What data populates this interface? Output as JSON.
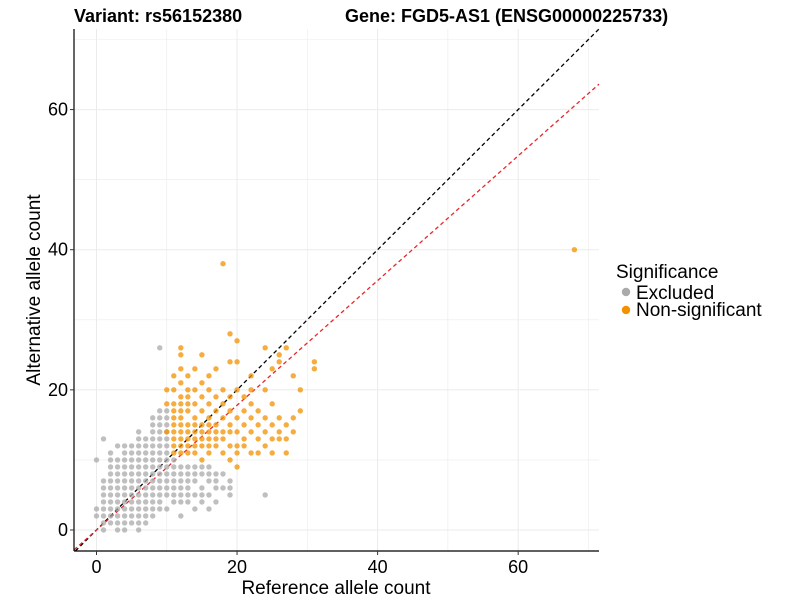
{
  "chart_data": {
    "type": "scatter",
    "title_left": "Variant: rs56152380",
    "title_right": "Gene: FGD5-AS1 (ENSG00000225733)",
    "xlabel": "Reference allele count",
    "ylabel": "Alternative allele count",
    "xlim": [
      -3.2,
      71.5
    ],
    "ylim": [
      -3.0,
      71.5
    ],
    "x_ticks": [
      0,
      20,
      40,
      60
    ],
    "y_ticks": [
      0,
      20,
      40,
      60
    ],
    "x_tick_labels": [
      "0",
      "20",
      "40",
      "60"
    ],
    "y_tick_labels": [
      "0",
      "20",
      "40",
      "60"
    ],
    "grid": true,
    "legend": {
      "title": "Significance",
      "position": "right",
      "entries": [
        {
          "label": "Excluded",
          "color": "#aaaaaa"
        },
        {
          "label": "Non-significant",
          "color": "#f39200"
        }
      ]
    },
    "reference_lines": [
      {
        "name": "identity",
        "slope": 1.0,
        "intercept": 0,
        "color": "#000000",
        "style": "dashed"
      },
      {
        "name": "fit",
        "slope": 0.89,
        "intercept": 0,
        "color": "#e8272a",
        "style": "dashed"
      }
    ],
    "series": [
      {
        "name": "Excluded",
        "color": "#aaaaaa",
        "points": [
          [
            0,
            2
          ],
          [
            0,
            3
          ],
          [
            0,
            10
          ],
          [
            1,
            0
          ],
          [
            1,
            1
          ],
          [
            1,
            2
          ],
          [
            1,
            3
          ],
          [
            1,
            4
          ],
          [
            1,
            5
          ],
          [
            1,
            6
          ],
          [
            1,
            7
          ],
          [
            1,
            13
          ],
          [
            2,
            1
          ],
          [
            2,
            2
          ],
          [
            2,
            3
          ],
          [
            2,
            4
          ],
          [
            2,
            5
          ],
          [
            2,
            6
          ],
          [
            2,
            7
          ],
          [
            2,
            8
          ],
          [
            2,
            9
          ],
          [
            2,
            10
          ],
          [
            2,
            11
          ],
          [
            3,
            0
          ],
          [
            3,
            1
          ],
          [
            3,
            2
          ],
          [
            3,
            3
          ],
          [
            3,
            4
          ],
          [
            3,
            5
          ],
          [
            3,
            6
          ],
          [
            3,
            7
          ],
          [
            3,
            8
          ],
          [
            3,
            9
          ],
          [
            3,
            10
          ],
          [
            3,
            12
          ],
          [
            4,
            0
          ],
          [
            4,
            1
          ],
          [
            4,
            2
          ],
          [
            4,
            3
          ],
          [
            4,
            4
          ],
          [
            4,
            5
          ],
          [
            4,
            6
          ],
          [
            4,
            7
          ],
          [
            4,
            8
          ],
          [
            4,
            9
          ],
          [
            4,
            10
          ],
          [
            4,
            11
          ],
          [
            4,
            12
          ],
          [
            5,
            1
          ],
          [
            5,
            2
          ],
          [
            5,
            3
          ],
          [
            5,
            4
          ],
          [
            5,
            5
          ],
          [
            5,
            6
          ],
          [
            5,
            7
          ],
          [
            5,
            8
          ],
          [
            5,
            9
          ],
          [
            5,
            10
          ],
          [
            5,
            11
          ],
          [
            5,
            12
          ],
          [
            6,
            0
          ],
          [
            6,
            1
          ],
          [
            6,
            2
          ],
          [
            6,
            3
          ],
          [
            6,
            4
          ],
          [
            6,
            5
          ],
          [
            6,
            6
          ],
          [
            6,
            7
          ],
          [
            6,
            8
          ],
          [
            6,
            9
          ],
          [
            6,
            10
          ],
          [
            6,
            11
          ],
          [
            6,
            12
          ],
          [
            6,
            13
          ],
          [
            6,
            14
          ],
          [
            7,
            1
          ],
          [
            7,
            2
          ],
          [
            7,
            3
          ],
          [
            7,
            4
          ],
          [
            7,
            5
          ],
          [
            7,
            6
          ],
          [
            7,
            7
          ],
          [
            7,
            8
          ],
          [
            7,
            9
          ],
          [
            7,
            10
          ],
          [
            7,
            11
          ],
          [
            7,
            12
          ],
          [
            7,
            13
          ],
          [
            8,
            2
          ],
          [
            8,
            3
          ],
          [
            8,
            4
          ],
          [
            8,
            5
          ],
          [
            8,
            6
          ],
          [
            8,
            7
          ],
          [
            8,
            8
          ],
          [
            8,
            9
          ],
          [
            8,
            10
          ],
          [
            8,
            11
          ],
          [
            8,
            12
          ],
          [
            8,
            13
          ],
          [
            8,
            14
          ],
          [
            8,
            15
          ],
          [
            8,
            16
          ],
          [
            9,
            3
          ],
          [
            9,
            4
          ],
          [
            9,
            5
          ],
          [
            9,
            6
          ],
          [
            9,
            7
          ],
          [
            9,
            8
          ],
          [
            9,
            9
          ],
          [
            9,
            10
          ],
          [
            9,
            11
          ],
          [
            9,
            12
          ],
          [
            9,
            13
          ],
          [
            9,
            14
          ],
          [
            9,
            15
          ],
          [
            9,
            16
          ],
          [
            9,
            17
          ],
          [
            9,
            26
          ],
          [
            10,
            3
          ],
          [
            10,
            5
          ],
          [
            10,
            6
          ],
          [
            10,
            7
          ],
          [
            10,
            8
          ],
          [
            10,
            9
          ],
          [
            10,
            10
          ],
          [
            10,
            11
          ],
          [
            10,
            12
          ],
          [
            10,
            13
          ],
          [
            10,
            14
          ],
          [
            10,
            15
          ],
          [
            10,
            16
          ],
          [
            10,
            17
          ],
          [
            11,
            4
          ],
          [
            11,
            5
          ],
          [
            11,
            6
          ],
          [
            11,
            7
          ],
          [
            11,
            8
          ],
          [
            11,
            9
          ],
          [
            11,
            10
          ],
          [
            12,
            2
          ],
          [
            12,
            4
          ],
          [
            12,
            5
          ],
          [
            12,
            6
          ],
          [
            12,
            7
          ],
          [
            12,
            8
          ],
          [
            12,
            9
          ],
          [
            13,
            4
          ],
          [
            13,
            5
          ],
          [
            13,
            6
          ],
          [
            13,
            7
          ],
          [
            13,
            8
          ],
          [
            13,
            9
          ],
          [
            14,
            3
          ],
          [
            14,
            5
          ],
          [
            14,
            7
          ],
          [
            14,
            8
          ],
          [
            14,
            9
          ],
          [
            15,
            4
          ],
          [
            15,
            5
          ],
          [
            15,
            6
          ],
          [
            15,
            8
          ],
          [
            15,
            9
          ],
          [
            16,
            3
          ],
          [
            16,
            5
          ],
          [
            16,
            7
          ],
          [
            16,
            8
          ],
          [
            16,
            9
          ],
          [
            17,
            4
          ],
          [
            17,
            6
          ],
          [
            17,
            7
          ],
          [
            17,
            8
          ],
          [
            18,
            6
          ],
          [
            18,
            8
          ],
          [
            19,
            5
          ],
          [
            19,
            6
          ],
          [
            19,
            7
          ],
          [
            24,
            5
          ]
        ]
      },
      {
        "name": "Non-significant",
        "color": "#f39200",
        "points": [
          [
            10,
            14
          ],
          [
            10,
            18
          ],
          [
            10,
            20
          ],
          [
            11,
            11
          ],
          [
            11,
            12
          ],
          [
            11,
            13
          ],
          [
            11,
            14
          ],
          [
            11,
            15
          ],
          [
            11,
            16
          ],
          [
            11,
            17
          ],
          [
            11,
            18
          ],
          [
            11,
            20
          ],
          [
            11,
            22
          ],
          [
            12,
            11
          ],
          [
            12,
            12
          ],
          [
            12,
            13
          ],
          [
            12,
            14
          ],
          [
            12,
            15
          ],
          [
            12,
            16
          ],
          [
            12,
            17
          ],
          [
            12,
            18
          ],
          [
            12,
            19
          ],
          [
            12,
            21
          ],
          [
            12,
            23
          ],
          [
            12,
            25
          ],
          [
            12,
            26
          ],
          [
            13,
            11
          ],
          [
            13,
            12
          ],
          [
            13,
            13
          ],
          [
            13,
            14
          ],
          [
            13,
            15
          ],
          [
            13,
            17
          ],
          [
            13,
            18
          ],
          [
            13,
            19
          ],
          [
            13,
            20
          ],
          [
            13,
            22
          ],
          [
            14,
            11
          ],
          [
            14,
            12
          ],
          [
            14,
            13
          ],
          [
            14,
            14
          ],
          [
            14,
            15
          ],
          [
            14,
            16
          ],
          [
            14,
            18
          ],
          [
            14,
            20
          ],
          [
            14,
            23
          ],
          [
            15,
            10
          ],
          [
            15,
            12
          ],
          [
            15,
            13
          ],
          [
            15,
            14
          ],
          [
            15,
            15
          ],
          [
            15,
            17
          ],
          [
            15,
            19
          ],
          [
            15,
            21
          ],
          [
            15,
            25
          ],
          [
            16,
            11
          ],
          [
            16,
            12
          ],
          [
            16,
            13
          ],
          [
            16,
            14
          ],
          [
            16,
            15
          ],
          [
            16,
            16
          ],
          [
            16,
            18
          ],
          [
            16,
            20
          ],
          [
            16,
            22
          ],
          [
            17,
            12
          ],
          [
            17,
            13
          ],
          [
            17,
            14
          ],
          [
            17,
            15
          ],
          [
            17,
            17
          ],
          [
            17,
            19
          ],
          [
            17,
            23
          ],
          [
            18,
            11
          ],
          [
            18,
            13
          ],
          [
            18,
            14
          ],
          [
            18,
            16
          ],
          [
            18,
            18
          ],
          [
            18,
            20
          ],
          [
            18,
            38
          ],
          [
            19,
            10
          ],
          [
            19,
            12
          ],
          [
            19,
            14
          ],
          [
            19,
            15
          ],
          [
            19,
            17
          ],
          [
            19,
            19
          ],
          [
            19,
            24
          ],
          [
            19,
            28
          ],
          [
            20,
            9
          ],
          [
            20,
            11
          ],
          [
            20,
            12
          ],
          [
            20,
            14
          ],
          [
            20,
            16
          ],
          [
            20,
            20
          ],
          [
            20,
            24
          ],
          [
            20,
            27
          ],
          [
            21,
            12
          ],
          [
            21,
            13
          ],
          [
            21,
            15
          ],
          [
            21,
            17
          ],
          [
            21,
            19
          ],
          [
            22,
            11
          ],
          [
            22,
            14
          ],
          [
            22,
            16
          ],
          [
            22,
            18
          ],
          [
            22,
            20
          ],
          [
            22,
            22
          ],
          [
            23,
            11
          ],
          [
            23,
            13
          ],
          [
            23,
            15
          ],
          [
            23,
            17
          ],
          [
            24,
            12
          ],
          [
            24,
            14
          ],
          [
            24,
            16
          ],
          [
            24,
            20
          ],
          [
            24,
            26
          ],
          [
            25,
            11
          ],
          [
            25,
            13
          ],
          [
            25,
            15
          ],
          [
            25,
            18
          ],
          [
            25,
            23
          ],
          [
            26,
            13
          ],
          [
            26,
            14
          ],
          [
            26,
            16
          ],
          [
            26,
            24
          ],
          [
            26,
            25
          ],
          [
            27,
            11
          ],
          [
            27,
            13
          ],
          [
            27,
            15
          ],
          [
            27,
            26
          ],
          [
            28,
            14
          ],
          [
            28,
            16
          ],
          [
            28,
            22
          ],
          [
            29,
            17
          ],
          [
            29,
            20
          ],
          [
            31,
            23
          ],
          [
            31,
            24
          ],
          [
            68,
            40
          ]
        ]
      }
    ]
  }
}
